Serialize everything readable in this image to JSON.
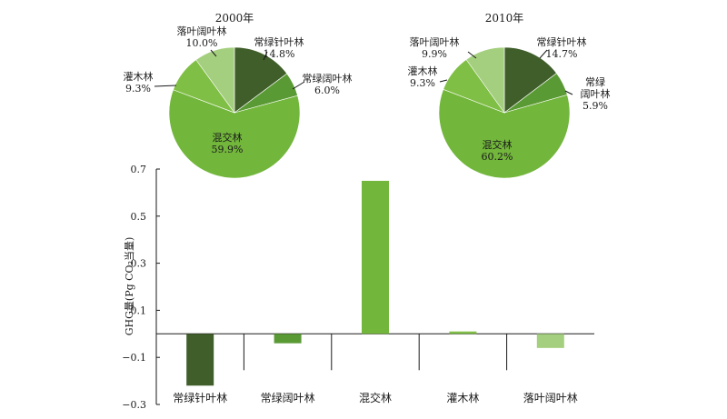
{
  "chart_data": [
    {
      "type": "pie",
      "title": "2000年",
      "slices": [
        {
          "label": "常绿针叶林",
          "value": 14.8,
          "text": "14.8%",
          "color": "#3f5e2a"
        },
        {
          "label": "常绿阔叶林",
          "value": 6.0,
          "text": "6.0%",
          "color": "#5a9a35"
        },
        {
          "label": "混交林",
          "value": 59.9,
          "text": "59.9%",
          "color": "#72b63c"
        },
        {
          "label": "灌木林",
          "value": 9.3,
          "text": "9.3%",
          "color": "#80bf45"
        },
        {
          "label": "落叶阔叶林",
          "value": 10.0,
          "text": "10.0%",
          "color": "#a4cf7e"
        }
      ]
    },
    {
      "type": "pie",
      "title": "2010年",
      "slices": [
        {
          "label": "常绿针叶林",
          "value": 14.7,
          "text": "14.7%",
          "color": "#3f5e2a"
        },
        {
          "label": "常绿阔叶林",
          "label_lines": [
            "常绿",
            "阔叶林"
          ],
          "value": 5.9,
          "text": "5.9%",
          "color": "#5a9a35"
        },
        {
          "label": "混交林",
          "value": 60.2,
          "text": "60.2%",
          "color": "#72b63c"
        },
        {
          "label": "灌木林",
          "value": 9.3,
          "text": "9.3%",
          "color": "#80bf45"
        },
        {
          "label": "落叶阔叶林",
          "value": 9.9,
          "text": "9.9%",
          "color": "#a4cf7e"
        }
      ]
    },
    {
      "type": "bar",
      "categories": [
        "常绿针叶林",
        "常绿阔叶林",
        "混交林",
        "灌木林",
        "落叶阔叶林"
      ],
      "values": [
        -0.22,
        -0.04,
        0.65,
        0.01,
        -0.06
      ],
      "colors": [
        "#3f5e2a",
        "#5a9a35",
        "#72b63c",
        "#80bf45",
        "#a4cf7e"
      ],
      "ylabel": "GHG量(Pg CO₂当量)",
      "ylim": [
        -0.3,
        0.7
      ],
      "yticks": [
        -0.3,
        -0.1,
        0.1,
        0.3,
        0.5,
        0.7
      ],
      "ytick_labels": [
        "−0.3",
        "−0.1",
        "0.1",
        "0.3",
        "0.5",
        "0.7"
      ]
    }
  ]
}
